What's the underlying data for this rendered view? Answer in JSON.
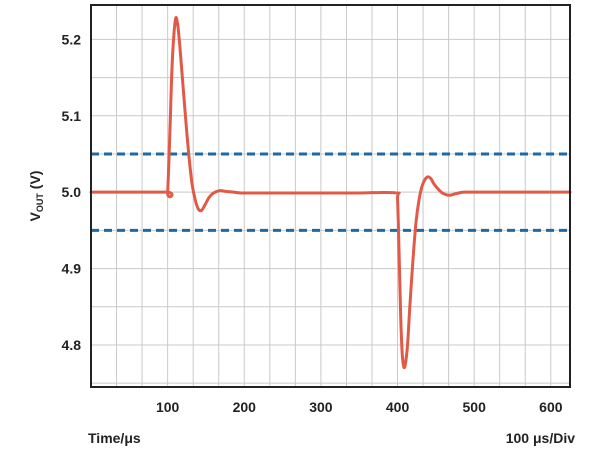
{
  "chart_data": {
    "type": "line",
    "xlabel": "Time/μs",
    "xlabel_right": "100 μs/Div",
    "ylabel": {
      "main": "V",
      "sub": "OUT",
      "unit": " (V)"
    },
    "xlim": [
      0,
      625
    ],
    "ylim": [
      4.745,
      5.245
    ],
    "x_ticks": [
      100,
      200,
      300,
      400,
      500,
      600
    ],
    "y_ticks": [
      4.8,
      4.9,
      5.0,
      5.1,
      5.2
    ],
    "x_grid_step": 33.33,
    "y_grid_step": 0.05,
    "grid": true,
    "series": [
      {
        "color": "#e05a47",
        "x": [
          0,
          98,
          100,
          103,
          106,
          110,
          113,
          116,
          120,
          124,
          128,
          132,
          136,
          140,
          144,
          148,
          154,
          160,
          168,
          176,
          186,
          196,
          210,
          250,
          300,
          350,
          398,
          400,
          402,
          404,
          406,
          408,
          410,
          413,
          416,
          420,
          424,
          428,
          432,
          436,
          440,
          444,
          448,
          454,
          460,
          468,
          476,
          486,
          500,
          550,
          600,
          625
        ],
        "values": [
          5.0,
          5.0,
          5.0,
          5.08,
          5.17,
          5.225,
          5.22,
          5.19,
          5.14,
          5.09,
          5.045,
          5.01,
          4.99,
          4.978,
          4.976,
          4.982,
          4.993,
          4.999,
          5.002,
          5.001,
          5.0,
          4.999,
          4.999,
          4.999,
          4.999,
          4.999,
          4.999,
          4.99,
          4.92,
          4.84,
          4.79,
          4.772,
          4.774,
          4.8,
          4.85,
          4.91,
          4.96,
          4.99,
          5.008,
          5.017,
          5.02,
          5.017,
          5.01,
          5.003,
          4.998,
          4.996,
          4.998,
          5.0,
          5.0,
          5.0,
          5.0,
          5.0
        ]
      }
    ],
    "reference_lines": [
      {
        "y": 5.05,
        "color": "#1f6aa5",
        "style": "dashed"
      },
      {
        "y": 4.95,
        "color": "#1f6aa5",
        "style": "dashed"
      }
    ]
  }
}
